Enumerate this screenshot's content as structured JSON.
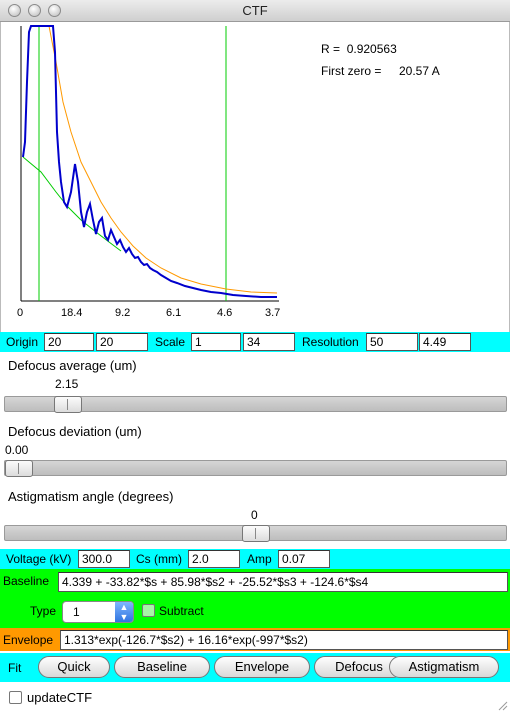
{
  "window": {
    "title": "CTF"
  },
  "plot": {
    "r_label": "R =",
    "r_value": "0.920563",
    "first_zero_label": "First zero =",
    "first_zero_value": "20.57 A",
    "ticks": [
      "0",
      "18.4",
      "9.2",
      "6.1",
      "4.6",
      "3.7"
    ],
    "colors": {
      "ctf": "#0000cc",
      "envelope": "#ff9900",
      "baseline": "#00cc00",
      "markers": "#00cc00"
    }
  },
  "row1": {
    "origin_label": "Origin",
    "origin_x": "20",
    "origin_y": "20",
    "scale_label": "Scale",
    "scale_x": "1",
    "scale_y": "34",
    "resolution_label": "Resolution",
    "resolution_a": "50",
    "resolution_b": "4.49"
  },
  "defocus_avg": {
    "title": "Defocus average (um)",
    "value": "2.15",
    "level": 0.1
  },
  "defocus_dev": {
    "title": "Defocus deviation (um)",
    "value": "0.00",
    "level": 0.0
  },
  "astig": {
    "title": "Astigmatism angle (degrees)",
    "value": "0",
    "level": 0.5
  },
  "row_voltage": {
    "voltage_label": "Voltage (kV)",
    "voltage": "300.0",
    "cs_label": "Cs (mm)",
    "cs": "2.0",
    "amp_label": "Amp",
    "amp": "0.07"
  },
  "baseline": {
    "label": "Baseline",
    "expr": "4.339 + -33.82*$s + 85.98*$s2 + -25.52*$s3 + -124.6*$s4",
    "type_label": "Type",
    "type_value": "1",
    "subtract_label": "Subtract"
  },
  "envelope": {
    "label": "Envelope",
    "expr": "1.313*exp(-126.7*$s2) + 16.16*exp(-997*$s2)"
  },
  "fit": {
    "label": "Fit",
    "buttons": [
      "Quick",
      "Baseline",
      "Envelope",
      "Defocus",
      "Astigmatism"
    ]
  },
  "update": {
    "label": "updateCTF"
  }
}
